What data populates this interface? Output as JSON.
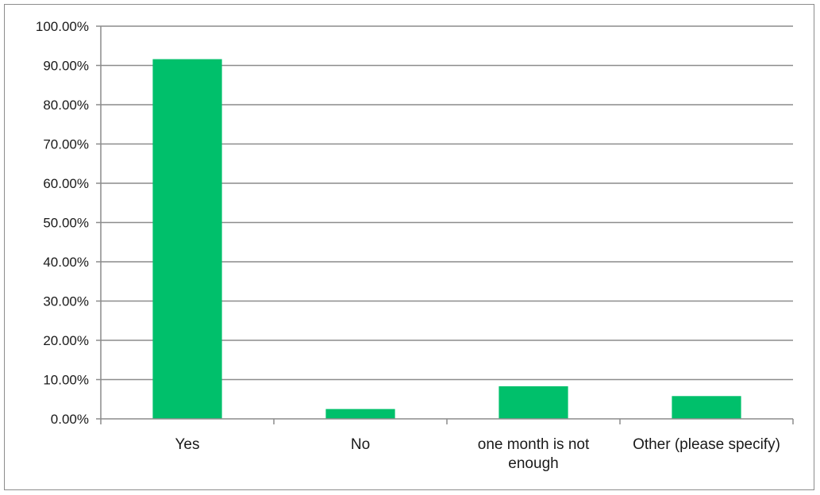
{
  "chart_data": {
    "type": "bar",
    "title": "",
    "xlabel": "",
    "ylabel": "",
    "categories": [
      "Yes",
      "No",
      "one month is not enough",
      "Other (please specify)"
    ],
    "category_label_lines": [
      [
        "Yes"
      ],
      [
        "No"
      ],
      [
        "one month is not",
        "enough"
      ],
      [
        "Other (please specify)"
      ]
    ],
    "series": [
      {
        "values": [
          91.6,
          2.5,
          8.3,
          5.8
        ]
      }
    ],
    "ylim": [
      0,
      100
    ],
    "y_ticks": [
      0,
      10,
      20,
      30,
      40,
      50,
      60,
      70,
      80,
      90,
      100
    ],
    "y_tick_labels": [
      "0.00%",
      "10.00%",
      "20.00%",
      "30.00%",
      "40.00%",
      "50.00%",
      "60.00%",
      "70.00%",
      "80.00%",
      "90.00%",
      "100.00%"
    ],
    "grid": true,
    "legend": "none",
    "colors": {
      "bar": "#00c06b",
      "grid": "#8c8c8c",
      "axis": "#8c8c8c",
      "frame": "#8c8c8c"
    }
  }
}
